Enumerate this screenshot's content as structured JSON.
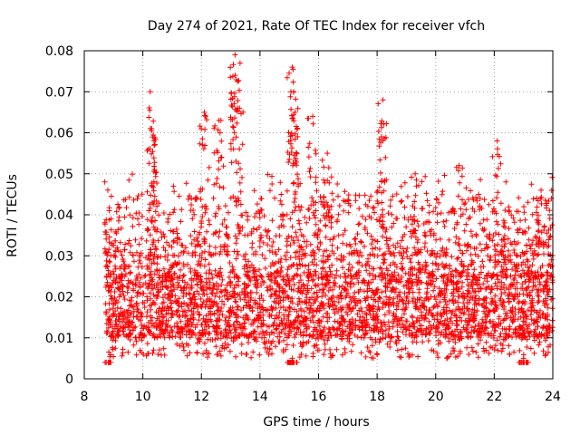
{
  "chart_data": {
    "type": "scatter",
    "title": "Day 274 of 2021, Rate Of TEC Index for receiver vfch",
    "xlabel": "GPS time / hours",
    "ylabel": "ROTI / TECUs",
    "xlim": [
      8,
      24
    ],
    "ylim": [
      0,
      0.08
    ],
    "x_ticks": [
      8,
      10,
      12,
      14,
      16,
      18,
      20,
      22,
      24
    ],
    "x_tick_labels": [
      "8",
      "10",
      "12",
      "14",
      "16",
      "18",
      "20",
      "22",
      "24"
    ],
    "y_ticks": [
      0,
      0.01,
      0.02,
      0.03,
      0.04,
      0.05,
      0.06,
      0.07,
      0.08
    ],
    "y_tick_labels": [
      "0",
      "0.01",
      "0.02",
      "0.03",
      "0.04",
      "0.05",
      "0.06",
      "0.07",
      "0.08"
    ],
    "grid": true,
    "marker": "+",
    "color": "#ff0000",
    "series": [
      {
        "name": "ROTI",
        "x_range": [
          8.7,
          24.0
        ],
        "typical_range": [
          0.01,
          0.025
        ],
        "notable_points": [
          {
            "x": 8.7,
            "y": 0.048
          },
          {
            "x": 8.75,
            "y": 0.004
          },
          {
            "x": 10.25,
            "y": 0.07
          },
          {
            "x": 10.3,
            "y": 0.061
          },
          {
            "x": 10.4,
            "y": 0.051
          },
          {
            "x": 12.1,
            "y": 0.065
          },
          {
            "x": 12.6,
            "y": 0.063
          },
          {
            "x": 13.15,
            "y": 0.079
          },
          {
            "x": 13.15,
            "y": 0.074
          },
          {
            "x": 13.3,
            "y": 0.066
          },
          {
            "x": 15.1,
            "y": 0.076
          },
          {
            "x": 15.15,
            "y": 0.07
          },
          {
            "x": 15.2,
            "y": 0.065
          },
          {
            "x": 15.1,
            "y": 0.005
          },
          {
            "x": 15.8,
            "y": 0.064
          },
          {
            "x": 16.3,
            "y": 0.055
          },
          {
            "x": 18.2,
            "y": 0.068
          },
          {
            "x": 18.15,
            "y": 0.059
          },
          {
            "x": 19.3,
            "y": 0.05
          },
          {
            "x": 20.8,
            "y": 0.052
          },
          {
            "x": 22.1,
            "y": 0.058
          },
          {
            "x": 22.4,
            "y": 0.048
          },
          {
            "x": 23.6,
            "y": 0.046
          },
          {
            "x": 23.95,
            "y": 0.044
          },
          {
            "x": 23.0,
            "y": 0.005
          }
        ]
      }
    ]
  }
}
